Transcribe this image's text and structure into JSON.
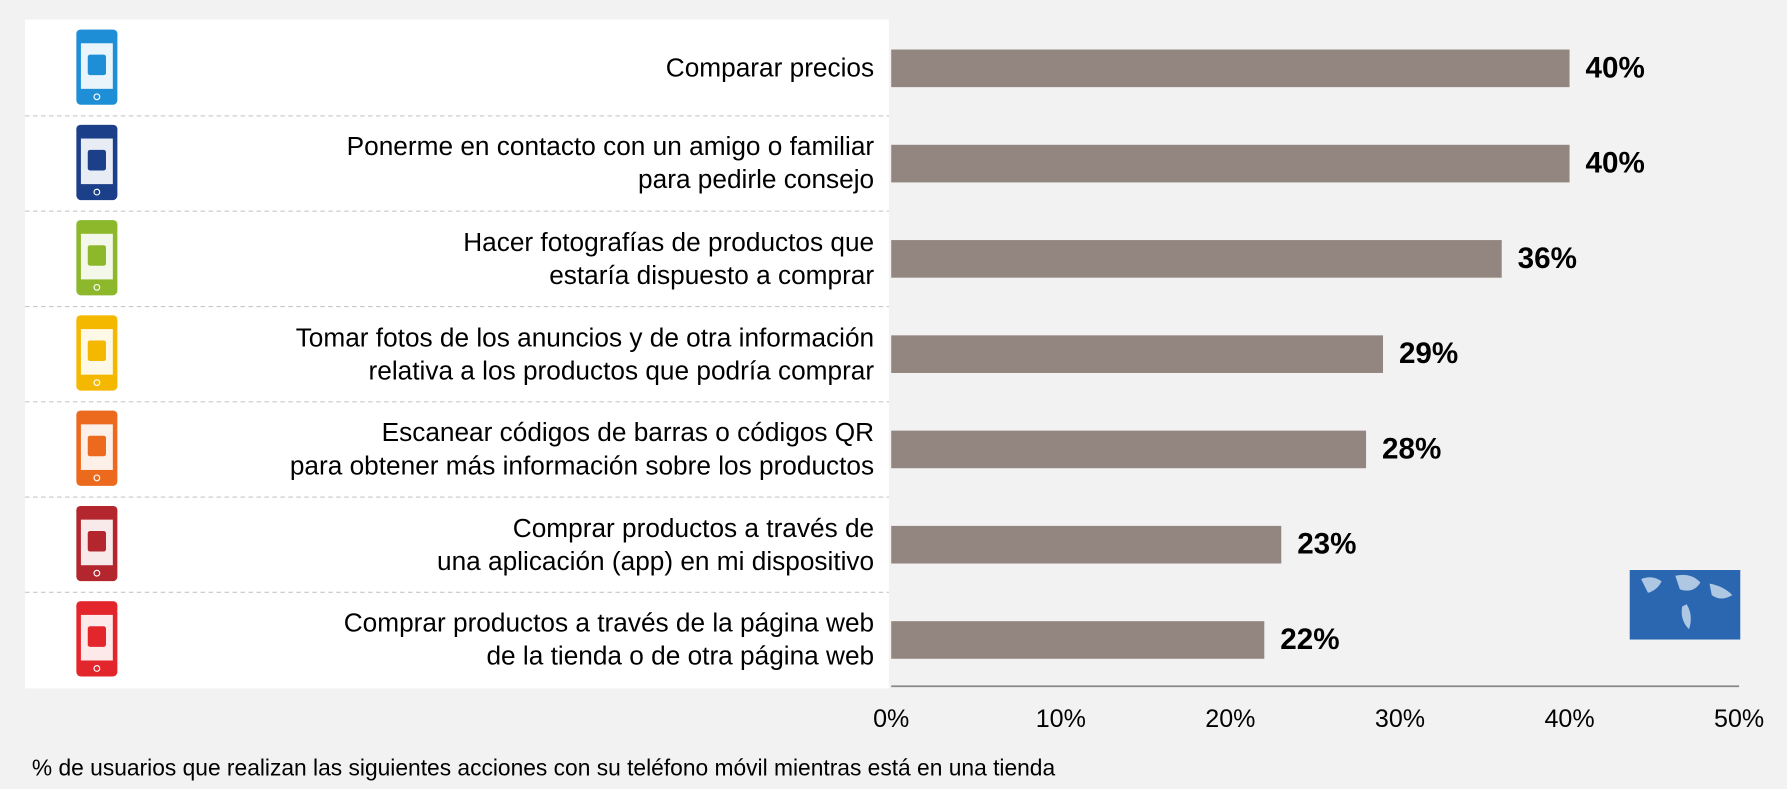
{
  "chart_data": {
    "type": "bar",
    "orientation": "horizontal",
    "categories": [
      "Comparar precios",
      "Ponerme en contacto con un amigo o familiar\npara pedirle consejo",
      "Hacer fotografías de productos que\nestaría dispuesto a comprar",
      "Tomar fotos de los anuncios y de otra información\nrelativa a los productos que podría comprar",
      "Escanear códigos de barras o códigos QR\npara obtener más información sobre los productos",
      "Comprar productos a través de\nuna aplicación (app) en mi dispositivo",
      "Comprar productos a través de la página web\nde la tienda o de otra página web"
    ],
    "values": [
      40,
      40,
      36,
      29,
      28,
      23,
      22
    ],
    "value_labels": [
      "40%",
      "40%",
      "36%",
      "29%",
      "28%",
      "23%",
      "22%"
    ],
    "color": "#938580",
    "xlim": [
      0,
      50
    ],
    "xticks": [
      {
        "value": 0,
        "label": "0%"
      },
      {
        "value": 10,
        "label": "10%"
      },
      {
        "value": 20,
        "label": "20%"
      },
      {
        "value": 30,
        "label": "30%"
      },
      {
        "value": 40,
        "label": "40%"
      },
      {
        "value": 50,
        "label": "50%"
      }
    ],
    "xlabel": "% de usuarios que realizan las siguientes acciones con su teléfono móvil mientras está en una tienda"
  }
}
